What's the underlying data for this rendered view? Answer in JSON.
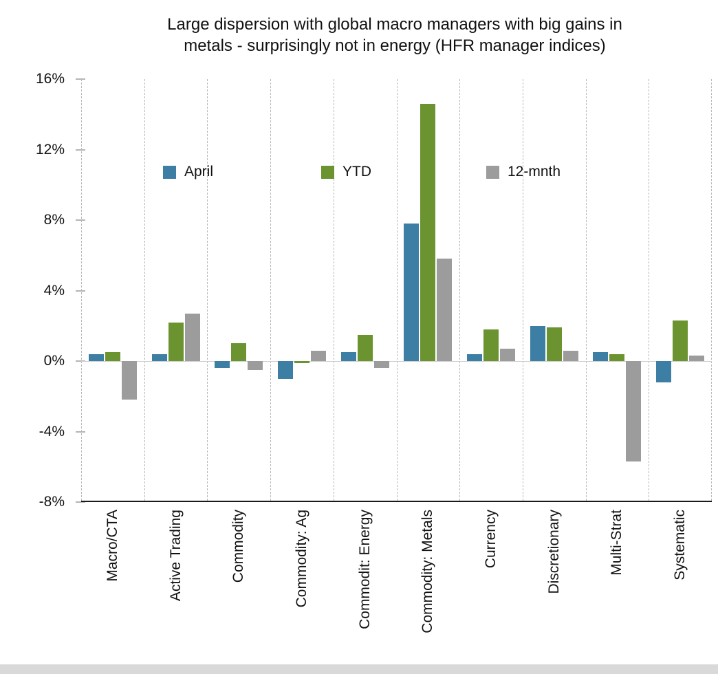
{
  "title": {
    "line1": "Large dispersion with global macro managers with big gains in",
    "line2": "metals - surprisingly not in energy (HFR manager indices)"
  },
  "chart_data": {
    "type": "bar",
    "title": "Large dispersion with global macro managers with big gains in metals - surprisingly not in energy (HFR manager indices)",
    "categories": [
      "Macro/CTA",
      "Active Trading",
      "Commodity",
      "Commodity: Ag",
      "Commodit: Energy",
      "Commodity: Metals",
      "Currency",
      "Discretionary",
      "Multi-Strat",
      "Systematic"
    ],
    "series": [
      {
        "name": "April",
        "color": "#3d7ea4",
        "values": [
          0.4,
          0.4,
          -0.4,
          -1.0,
          0.5,
          7.8,
          0.4,
          2.0,
          0.5,
          -1.2
        ]
      },
      {
        "name": "YTD",
        "color": "#6b9430",
        "values": [
          0.5,
          2.2,
          1.0,
          -0.1,
          1.5,
          14.6,
          1.8,
          1.9,
          0.4,
          2.3
        ]
      },
      {
        "name": "12-mnth",
        "color": "#9c9c9c",
        "values": [
          -2.2,
          2.7,
          -0.5,
          0.6,
          -0.4,
          5.8,
          0.7,
          0.6,
          -5.7,
          0.3
        ]
      }
    ],
    "ylim": [
      -8,
      16
    ],
    "yticks": [
      16,
      12,
      8,
      4,
      0,
      -4,
      -8
    ],
    "ytick_labels": [
      "16%",
      "12%",
      "8%",
      "4%",
      "0%",
      "-4%",
      "-8%"
    ],
    "grid": "vertical-dashed",
    "legend_position": "inside-top",
    "xlabel": "",
    "ylabel": ""
  }
}
